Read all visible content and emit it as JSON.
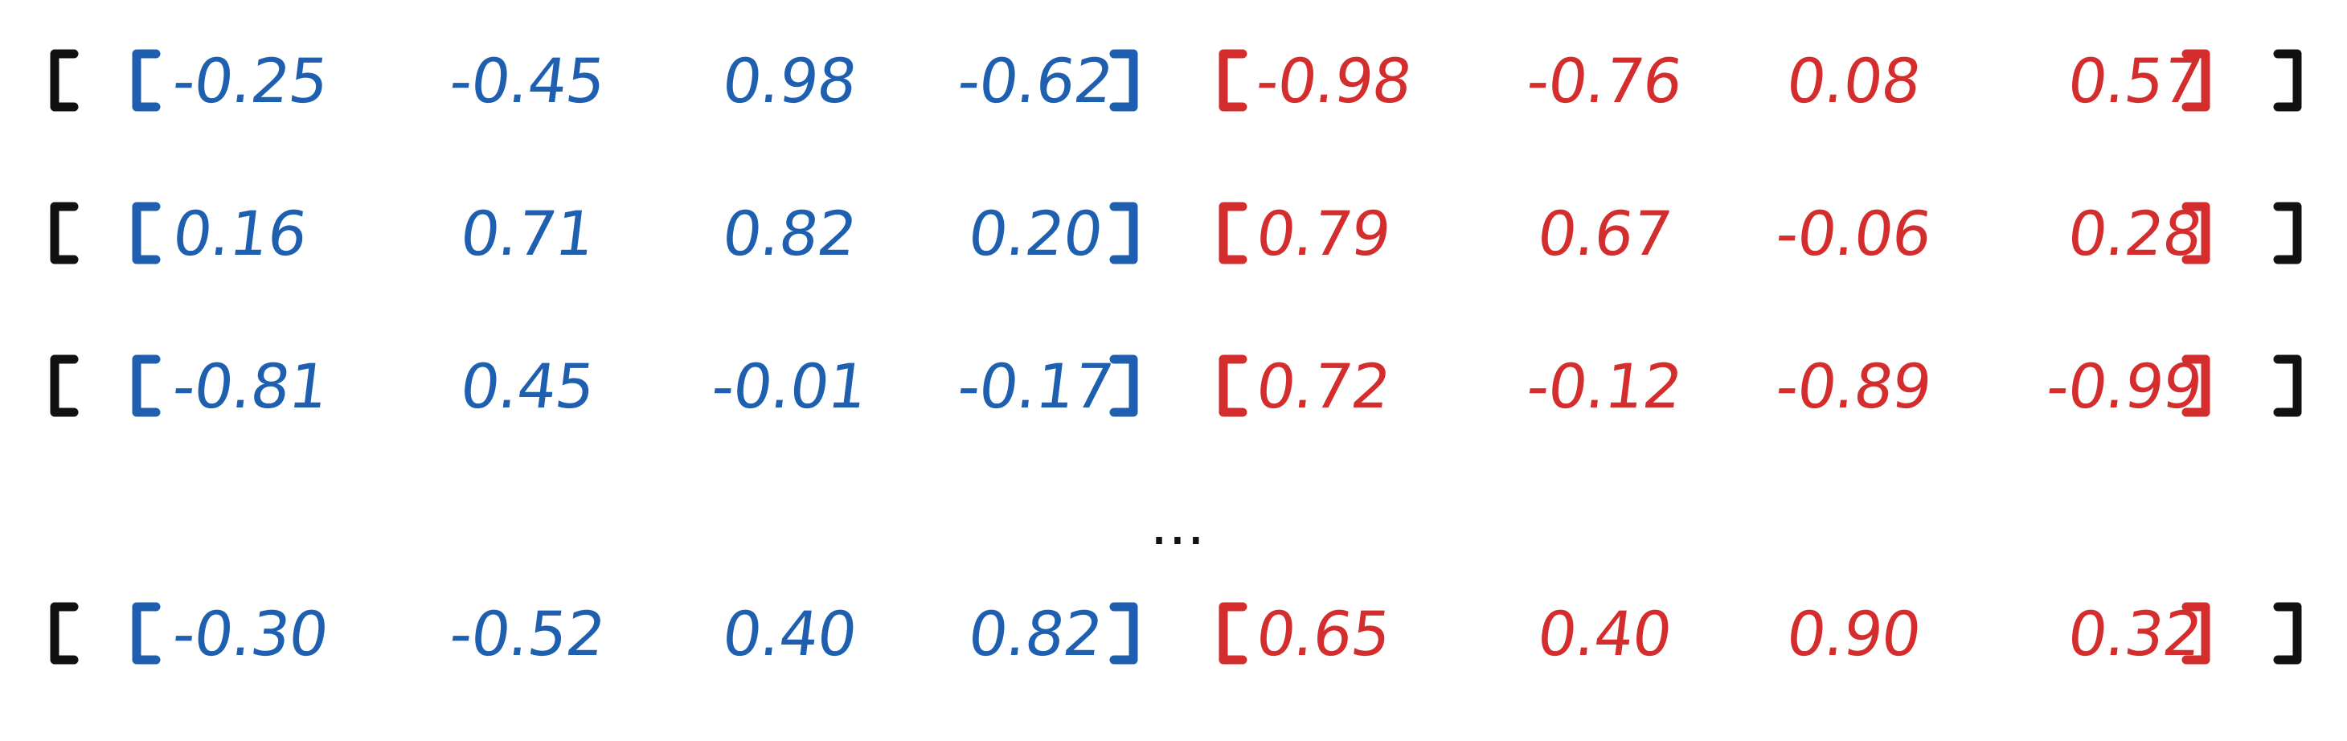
{
  "rows": [
    {
      "blue": [
        "-0.25",
        "-0.45",
        "0.98",
        "-0.62"
      ],
      "red": [
        "-0.98",
        "-0.76",
        "0.08",
        "0.57"
      ]
    },
    {
      "blue": [
        "0.16",
        "0.71",
        "0.82",
        "0.20"
      ],
      "red": [
        "0.79",
        "0.67",
        "-0.06",
        "0.28"
      ]
    },
    {
      "blue": [
        "-0.81",
        "0.45",
        "-0.01",
        "-0.17"
      ],
      "red": [
        "0.72",
        "-0.12",
        "-0.89",
        "-0.99"
      ]
    },
    {
      "blue": [
        "-0.30",
        "-0.52",
        "0.40",
        "0.82"
      ],
      "red": [
        "0.65",
        "0.40",
        "0.90",
        "0.32"
      ]
    }
  ],
  "ellipsis": "...",
  "colors": {
    "outer_bracket": "#111111",
    "blue_group": "#1f5fb0",
    "red_group": "#d42d2d"
  },
  "icons": {
    "bracket": "square-bracket-icon"
  }
}
